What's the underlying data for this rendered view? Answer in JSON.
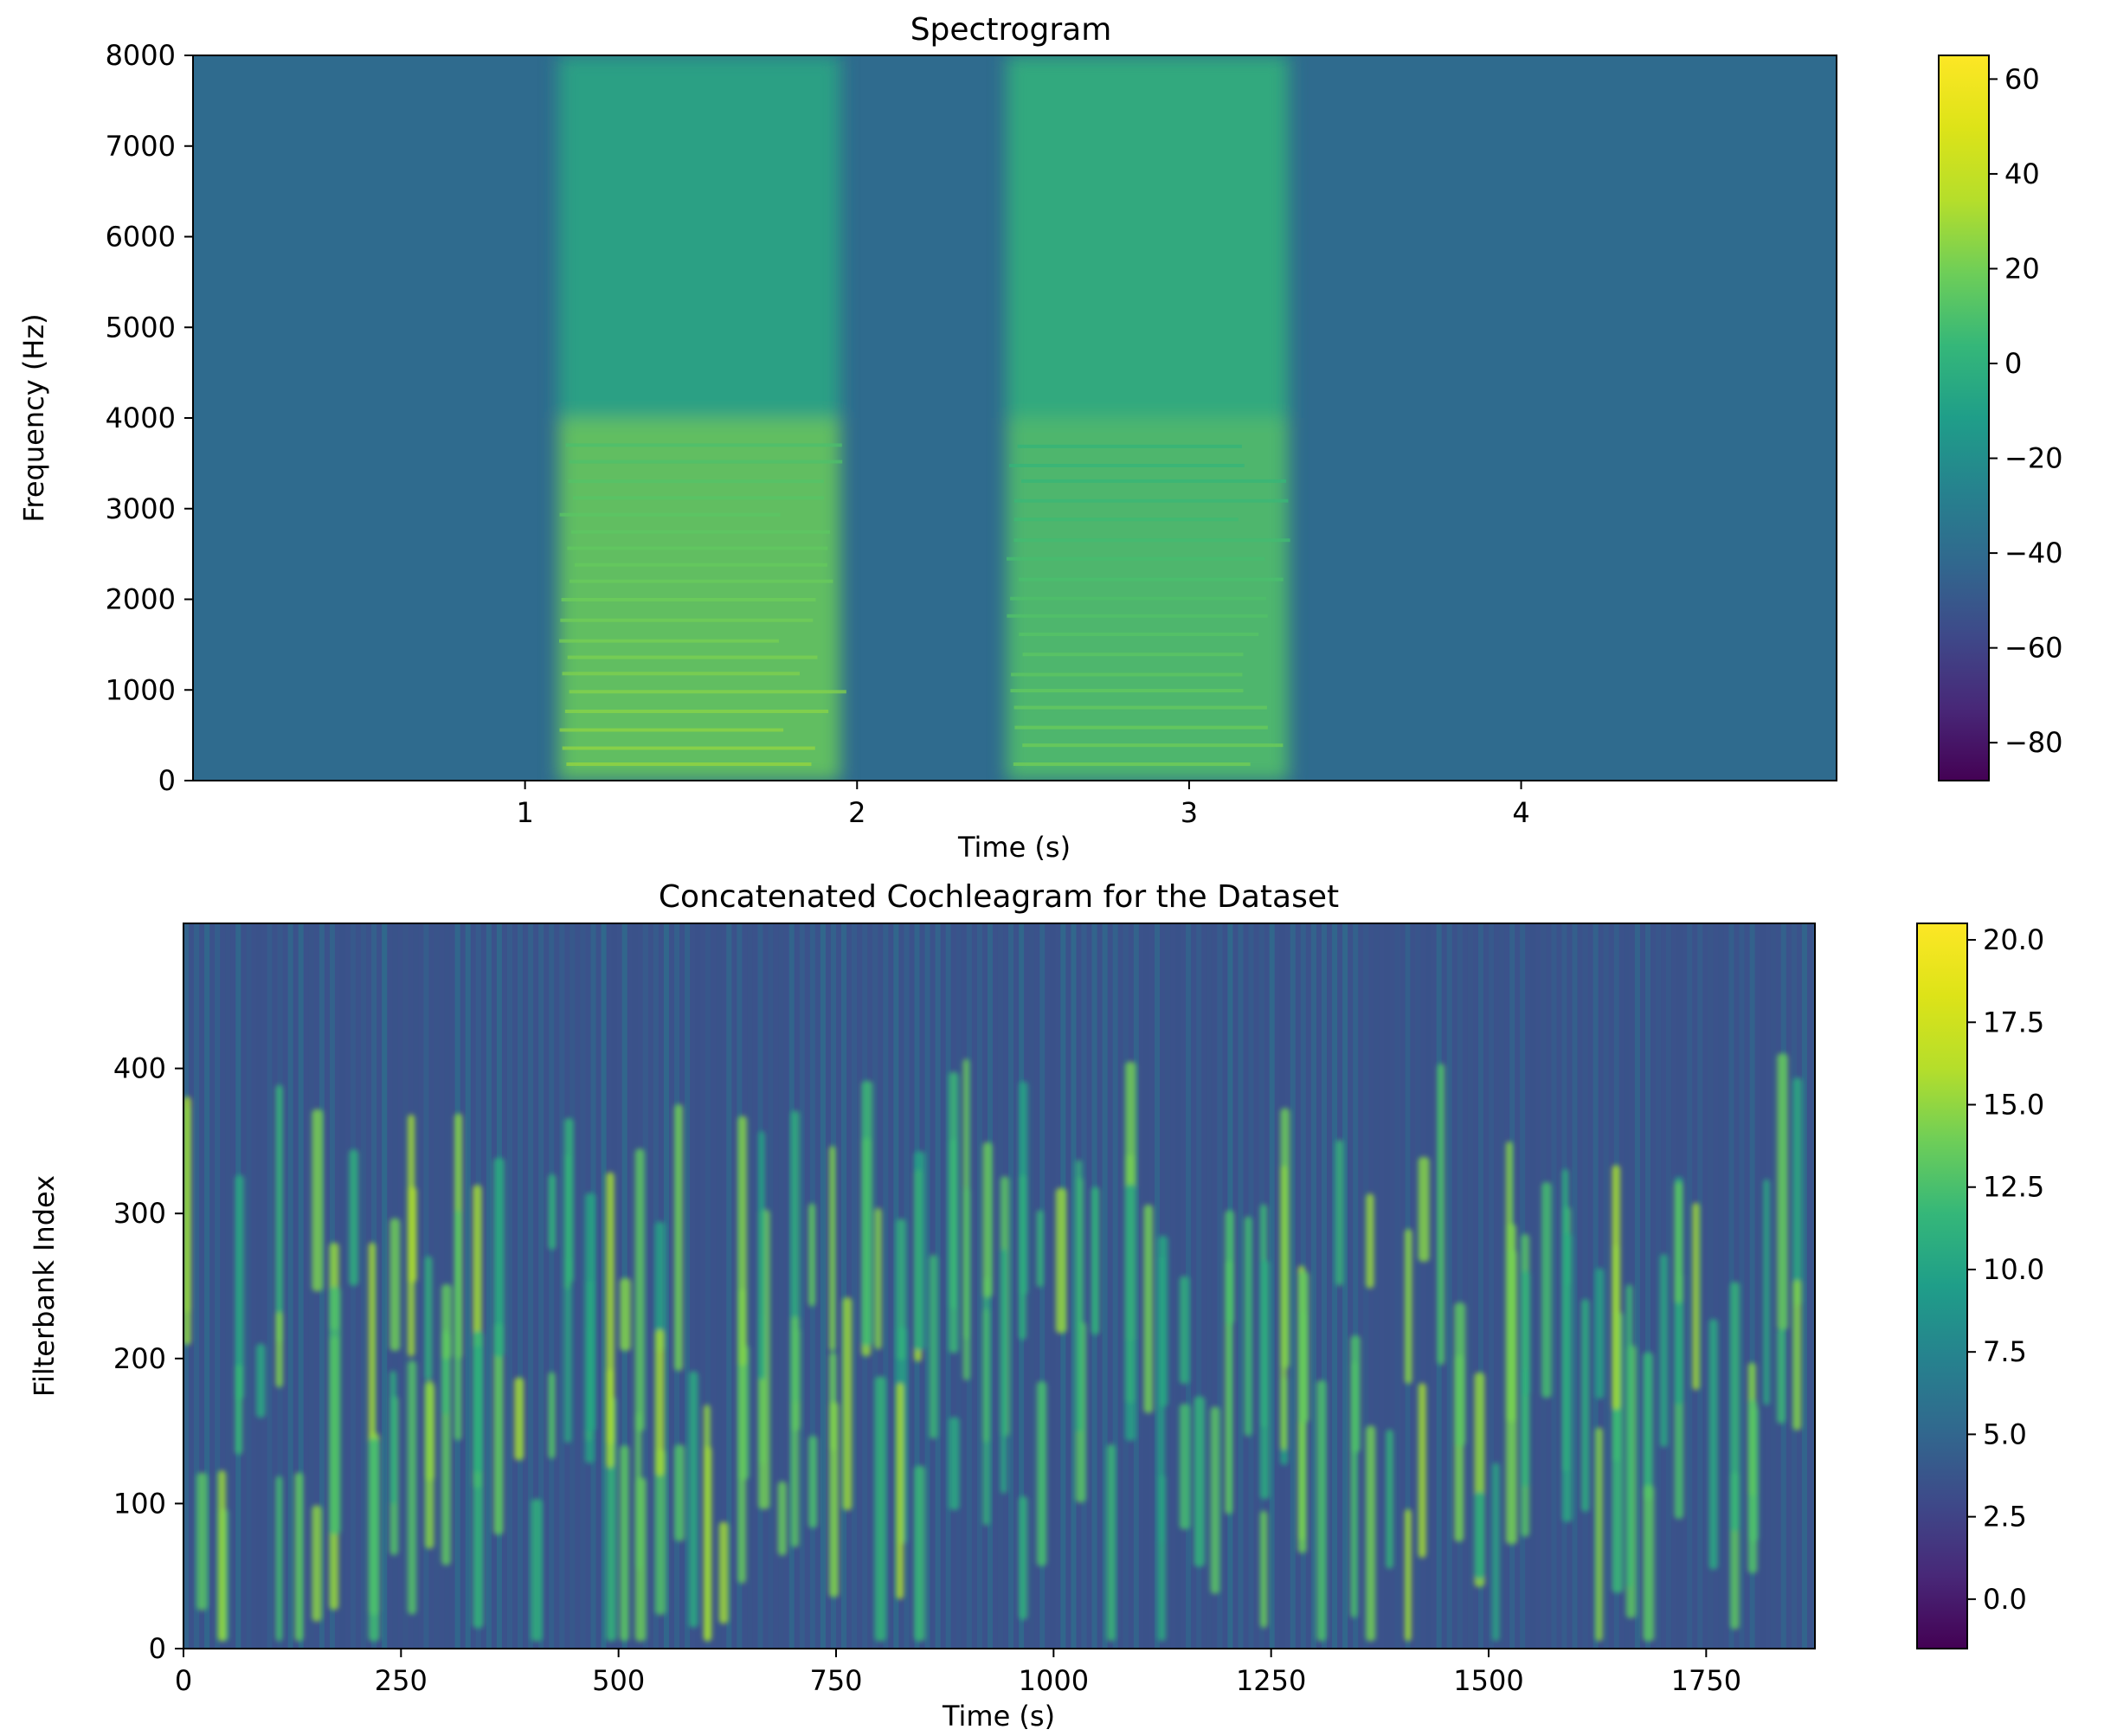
{
  "chart_data": [
    {
      "type": "heatmap",
      "title": "Spectrogram",
      "xlabel": "Time (s)",
      "ylabel": "Frequency (Hz)",
      "xlim": [
        0.0,
        4.95
      ],
      "ylim": [
        0,
        8000
      ],
      "xticks": [
        1,
        2,
        3,
        4
      ],
      "yticks": [
        0,
        1000,
        2000,
        3000,
        4000,
        5000,
        6000,
        7000,
        8000
      ],
      "colorbar": {
        "min": -88,
        "max": 65,
        "ticks": [
          60,
          40,
          20,
          0,
          -20,
          -40,
          -60,
          -80
        ]
      },
      "colormap": "viridis",
      "regions": [
        {
          "t": [
            1.1,
            1.95
          ],
          "f": [
            0,
            4000
          ],
          "level_db": 18
        },
        {
          "t": [
            2.45,
            3.3
          ],
          "f": [
            0,
            4000
          ],
          "level_db": 12
        },
        {
          "t": [
            1.1,
            1.95
          ],
          "f": [
            4000,
            8000
          ],
          "level_db": -5
        },
        {
          "t": [
            2.45,
            3.3
          ],
          "f": [
            4000,
            8000
          ],
          "level_db": 2
        },
        {
          "t": [
            0.0,
            4.95
          ],
          "f": [
            0,
            8000
          ],
          "level_db": -35
        }
      ]
    },
    {
      "type": "heatmap",
      "title": "Concatenated Cochleagram for the Dataset",
      "xlabel": "Time (s)",
      "ylabel": "Filterbank Index",
      "xlim": [
        0,
        1875
      ],
      "ylim": [
        0,
        500
      ],
      "xticks": [
        0,
        250,
        500,
        750,
        1000,
        1250,
        1500,
        1750
      ],
      "yticks": [
        0,
        100,
        200,
        300,
        400
      ],
      "colorbar": {
        "min": -1.5,
        "max": 20.5,
        "ticks": [
          20.0,
          17.5,
          15.0,
          12.5,
          10.0,
          7.5,
          5.0,
          2.5,
          0.0
        ]
      },
      "colormap": "viridis",
      "background_level": 4.5,
      "active_level_range": [
        10.0,
        16.0
      ]
    }
  ]
}
